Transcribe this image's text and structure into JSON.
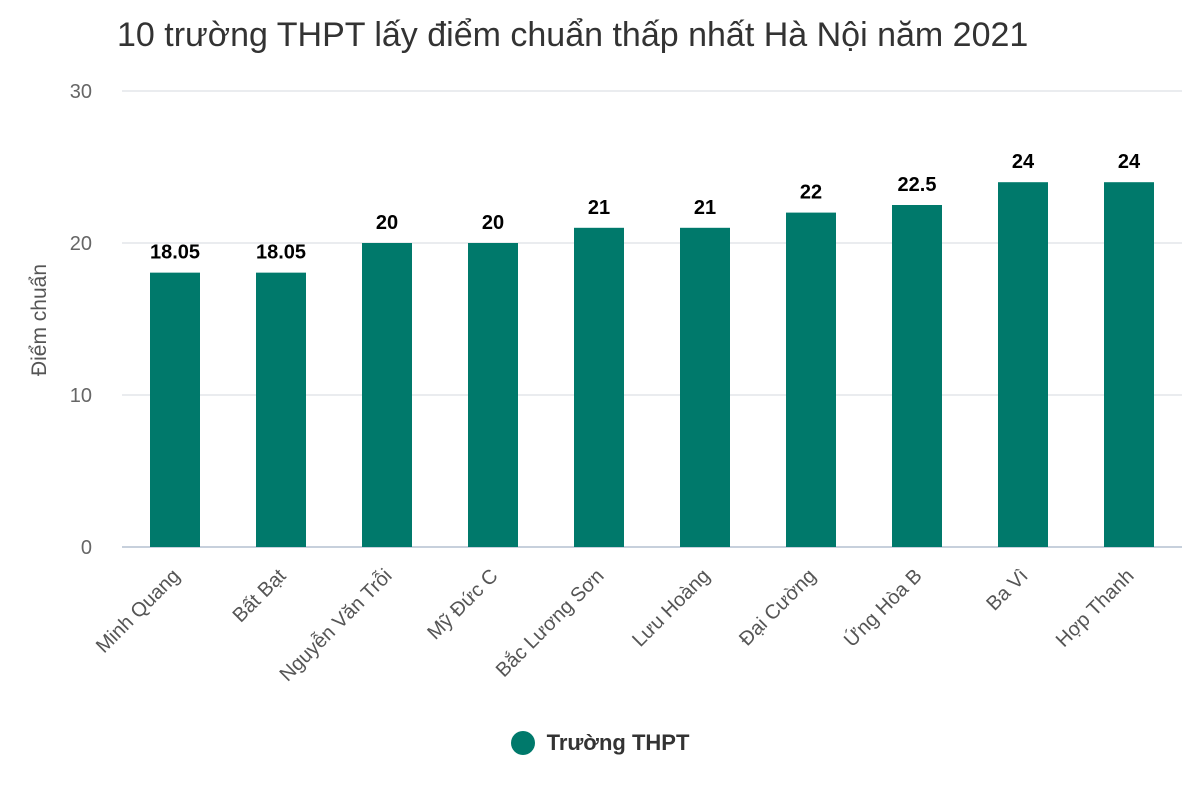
{
  "chart_data": {
    "type": "bar",
    "title": "10 trường THPT lấy điểm chuẩn thấp nhất Hà Nội năm 2021",
    "ylabel": "Điểm chuẩn",
    "xlabel": "",
    "ylim": [
      0,
      30
    ],
    "yticks": [
      "0",
      "10",
      "20",
      "30"
    ],
    "grid": true,
    "legend_position": "bottom",
    "categories": [
      "Minh Quang",
      "Bất Bạt",
      "Nguyễn Văn Trỗi",
      "Mỹ Đức C",
      "Bắc Lương Sơn",
      "Lưu Hoàng",
      "Đại Cường",
      "Ứng Hòa B",
      "Ba Vì",
      "Hợp Thanh"
    ],
    "series": [
      {
        "name": "Trường THPT",
        "color": "#00796b",
        "values": [
          18.05,
          18.05,
          20,
          20,
          21,
          21,
          22,
          22.5,
          24,
          24
        ],
        "labels": [
          "18.05",
          "18.05",
          "20",
          "20",
          "21",
          "21",
          "22",
          "22.5",
          "24",
          "24"
        ]
      }
    ]
  }
}
